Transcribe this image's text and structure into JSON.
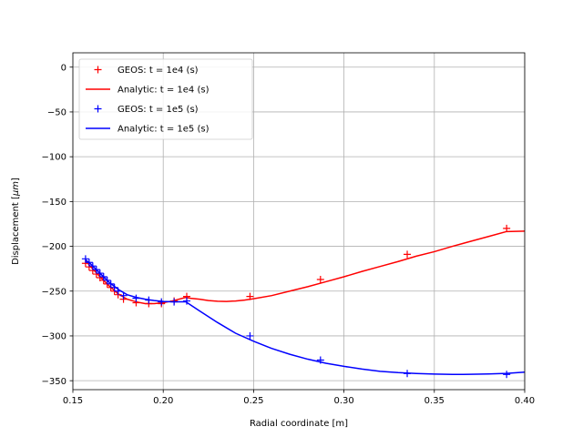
{
  "chart_data": {
    "type": "line",
    "xlabel": "Radial coordinate [m]",
    "ylabel": "Displacement [",
    "ylabel_unit": "μm",
    "ylabel_close": "]",
    "xlim": [
      0.15,
      0.4
    ],
    "ylim": [
      -360,
      16
    ],
    "xticks": [
      0.15,
      0.2,
      0.25,
      0.3,
      0.35,
      0.4
    ],
    "xtick_labels": [
      "0.15",
      "0.20",
      "0.25",
      "0.30",
      "0.35",
      "0.40"
    ],
    "yticks": [
      0,
      -50,
      -100,
      -150,
      -200,
      -250,
      -300,
      -350
    ],
    "ytick_labels": [
      "0",
      "−50",
      "−100",
      "−150",
      "−200",
      "−250",
      "−300",
      "−350"
    ],
    "grid": true,
    "legend_position": "top-left",
    "series": [
      {
        "name": "GEOS: t = 1e4 (s)",
        "kind": "marker",
        "color": "#ff0000",
        "x": [
          0.157,
          0.159,
          0.161,
          0.163,
          0.165,
          0.167,
          0.169,
          0.171,
          0.173,
          0.175,
          0.178,
          0.185,
          0.192,
          0.199,
          0.206,
          0.213,
          0.248,
          0.287,
          0.335,
          0.39
        ],
        "y": [
          -219,
          -223,
          -227,
          -231,
          -235,
          -238,
          -242,
          -246,
          -250,
          -254,
          -259,
          -263,
          -264,
          -264,
          -261,
          -256,
          -256,
          -237,
          -209,
          -180
        ]
      },
      {
        "name": "Analytic: t = 1e4 (s)",
        "kind": "line",
        "color": "#ff0000",
        "x": [
          0.157,
          0.16,
          0.165,
          0.17,
          0.175,
          0.18,
          0.185,
          0.19,
          0.195,
          0.2,
          0.205,
          0.2125,
          0.215,
          0.22,
          0.225,
          0.23,
          0.235,
          0.24,
          0.245,
          0.25,
          0.26,
          0.27,
          0.28,
          0.29,
          0.3,
          0.31,
          0.32,
          0.33,
          0.34,
          0.35,
          0.36,
          0.37,
          0.38,
          0.39,
          0.4
        ],
        "y": [
          -216,
          -223,
          -234,
          -244,
          -253,
          -259,
          -262,
          -264,
          -264,
          -263,
          -261,
          -257,
          -258,
          -259,
          -260.5,
          -261.3,
          -261.5,
          -261,
          -260,
          -258.5,
          -255,
          -250,
          -245,
          -239.5,
          -234,
          -228,
          -222.5,
          -217,
          -211,
          -206,
          -200,
          -194.5,
          -189,
          -183.5,
          -183
        ]
      },
      {
        "name": "GEOS: t = 1e5 (s)",
        "kind": "marker",
        "color": "#0000ff",
        "x": [
          0.157,
          0.159,
          0.161,
          0.163,
          0.165,
          0.167,
          0.169,
          0.171,
          0.173,
          0.175,
          0.178,
          0.185,
          0.192,
          0.199,
          0.206,
          0.213,
          0.248,
          0.287,
          0.335,
          0.39
        ],
        "y": [
          -214,
          -218,
          -222,
          -226,
          -230,
          -234,
          -238,
          -242,
          -246,
          -250,
          -255,
          -258,
          -260,
          -262,
          -262,
          -261,
          -300,
          -327,
          -342,
          -343
        ]
      },
      {
        "name": "Analytic: t = 1e5 (s)",
        "kind": "line",
        "color": "#0000ff",
        "x": [
          0.157,
          0.16,
          0.165,
          0.17,
          0.175,
          0.18,
          0.185,
          0.19,
          0.195,
          0.2,
          0.205,
          0.2125,
          0.22,
          0.23,
          0.24,
          0.25,
          0.26,
          0.27,
          0.28,
          0.29,
          0.3,
          0.31,
          0.32,
          0.33,
          0.34,
          0.35,
          0.36,
          0.37,
          0.38,
          0.39,
          0.4
        ],
        "y": [
          -215,
          -220,
          -230,
          -240,
          -248,
          -254,
          -257,
          -259,
          -260.5,
          -261.5,
          -262,
          -262,
          -272,
          -285,
          -297,
          -306,
          -314,
          -320.5,
          -326,
          -330.5,
          -334,
          -337,
          -339.5,
          -341,
          -342,
          -342.6,
          -343,
          -342.9,
          -342.5,
          -341.8,
          -340.5
        ]
      }
    ]
  }
}
